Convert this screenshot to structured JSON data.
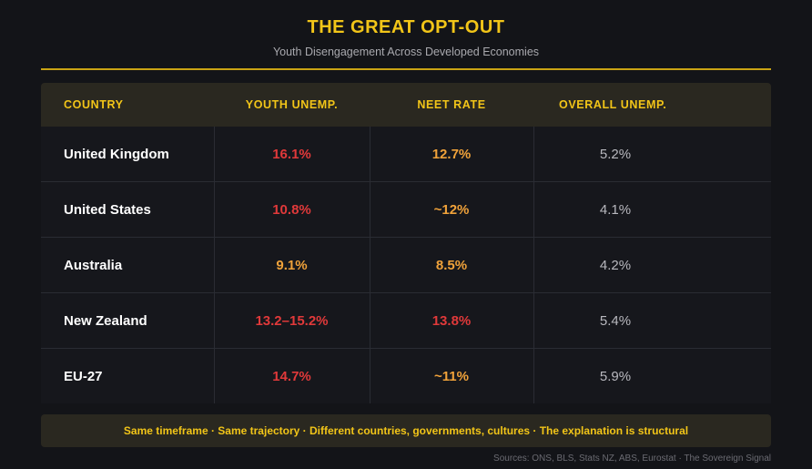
{
  "header": {
    "title": "THE GREAT OPT-OUT",
    "subtitle": "Youth Disengagement Across Developed Economies"
  },
  "chart_data": {
    "type": "table",
    "columns": [
      "COUNTRY",
      "YOUTH UNEMP.",
      "NEET RATE",
      "OVERALL UNEMP."
    ],
    "rows": [
      {
        "country": "United Kingdom",
        "youth": "16.1%",
        "neet": "12.7%",
        "overall": "5.2%",
        "youth_color": "#e0393a",
        "neet_color": "#f0a23a"
      },
      {
        "country": "United States",
        "youth": "10.8%",
        "neet": "~12%",
        "overall": "4.1%",
        "youth_color": "#e0393a",
        "neet_color": "#f0a23a"
      },
      {
        "country": "Australia",
        "youth": "9.1%",
        "neet": "8.5%",
        "overall": "4.2%",
        "youth_color": "#f0a23a",
        "neet_color": "#f0a23a"
      },
      {
        "country": "New Zealand",
        "youth": "13.2–15.2%",
        "neet": "13.8%",
        "overall": "5.4%",
        "youth_color": "#e0393a",
        "neet_color": "#e0393a"
      },
      {
        "country": "EU-27",
        "youth": "14.7%",
        "neet": "~11%",
        "overall": "5.9%",
        "youth_color": "#e0393a",
        "neet_color": "#f0a23a"
      }
    ]
  },
  "footer": {
    "note": "Same timeframe · Same trajectory · Different countries, governments, cultures · The explanation is structural",
    "source": "Sources: ONS, BLS, Stats NZ, ABS, Eurostat · The Sovereign Signal"
  },
  "colors": {
    "accent": "#f2c518",
    "high": "#e0393a",
    "moderate": "#f0a23a",
    "background": "#131418"
  }
}
